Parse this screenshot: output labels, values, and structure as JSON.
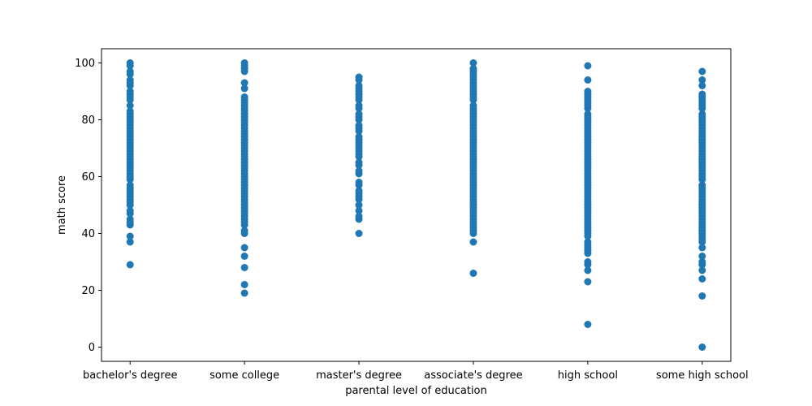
{
  "chart_data": {
    "type": "scatter",
    "title": "",
    "xlabel": "parental level of education",
    "ylabel": "math score",
    "categories": [
      "bachelor's degree",
      "some college",
      "master's degree",
      "associate's degree",
      "high school",
      "some high school"
    ],
    "ylim": [
      -5,
      105
    ],
    "yticks": [
      "0",
      "20",
      "40",
      "60",
      "80",
      "100"
    ],
    "grid": false,
    "legend": "none",
    "marker_color": "#1f77b4",
    "series": [
      {
        "category": "bachelor's degree",
        "values": [
          29,
          37,
          39,
          43,
          44,
          45,
          47,
          48,
          50,
          51,
          52,
          53,
          54,
          55,
          56,
          57,
          59,
          60,
          61,
          62,
          63,
          64,
          65,
          66,
          67,
          68,
          69,
          70,
          71,
          72,
          73,
          74,
          75,
          76,
          77,
          78,
          79,
          80,
          81,
          82,
          83,
          85,
          87,
          88,
          89,
          90,
          92,
          93,
          94,
          96,
          97,
          99,
          100
        ]
      },
      {
        "category": "some college",
        "values": [
          19,
          22,
          28,
          32,
          35,
          40,
          41,
          43,
          44,
          45,
          46,
          47,
          48,
          49,
          50,
          51,
          52,
          53,
          54,
          55,
          56,
          57,
          58,
          59,
          60,
          61,
          62,
          63,
          64,
          65,
          66,
          67,
          68,
          69,
          70,
          71,
          72,
          73,
          74,
          75,
          76,
          77,
          78,
          79,
          80,
          81,
          82,
          83,
          84,
          85,
          86,
          87,
          88,
          91,
          93,
          97,
          98,
          99,
          100
        ]
      },
      {
        "category": "master's degree",
        "values": [
          40,
          45,
          46,
          48,
          50,
          52,
          53,
          54,
          55,
          57,
          58,
          61,
          62,
          64,
          65,
          67,
          68,
          69,
          70,
          71,
          72,
          73,
          74,
          76,
          77,
          78,
          80,
          81,
          82,
          84,
          85,
          87,
          88,
          89,
          90,
          91,
          92,
          94,
          95
        ]
      },
      {
        "category": "associate's degree",
        "values": [
          26,
          37,
          40,
          41,
          42,
          43,
          44,
          45,
          46,
          47,
          48,
          49,
          50,
          51,
          52,
          53,
          54,
          55,
          56,
          57,
          58,
          59,
          60,
          61,
          62,
          63,
          64,
          65,
          66,
          67,
          68,
          69,
          70,
          71,
          72,
          73,
          74,
          75,
          76,
          77,
          78,
          79,
          80,
          81,
          82,
          83,
          84,
          85,
          87,
          88,
          89,
          90,
          91,
          92,
          93,
          94,
          95,
          96,
          97,
          98,
          100
        ]
      },
      {
        "category": "high school",
        "values": [
          8,
          23,
          27,
          29,
          30,
          33,
          34,
          35,
          36,
          37,
          39,
          40,
          41,
          42,
          43,
          44,
          45,
          46,
          47,
          48,
          49,
          50,
          51,
          52,
          53,
          54,
          55,
          56,
          57,
          58,
          59,
          60,
          61,
          62,
          63,
          64,
          65,
          66,
          67,
          68,
          69,
          70,
          71,
          72,
          73,
          74,
          75,
          76,
          77,
          78,
          79,
          80,
          81,
          82,
          84,
          85,
          86,
          87,
          88,
          89,
          90,
          94,
          99
        ]
      },
      {
        "category": "some high school",
        "values": [
          0,
          18,
          24,
          27,
          29,
          30,
          32,
          35,
          37,
          38,
          39,
          40,
          41,
          42,
          43,
          44,
          45,
          46,
          47,
          48,
          49,
          50,
          51,
          52,
          53,
          54,
          55,
          56,
          57,
          59,
          60,
          61,
          62,
          63,
          64,
          65,
          66,
          67,
          68,
          69,
          70,
          71,
          72,
          73,
          74,
          75,
          76,
          77,
          78,
          79,
          80,
          81,
          82,
          84,
          85,
          86,
          87,
          88,
          89,
          92,
          94,
          97
        ]
      }
    ]
  }
}
